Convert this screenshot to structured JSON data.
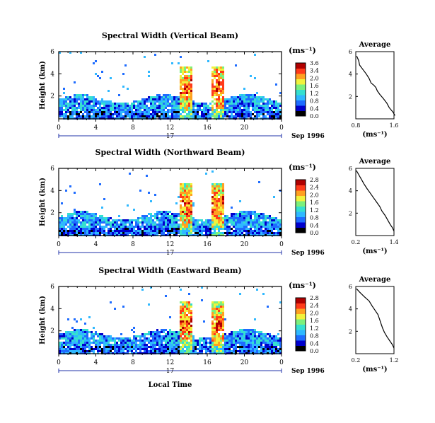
{
  "colors": {
    "axis": "#000000",
    "date_line": "#2233aa",
    "colormap": [
      "#000000",
      "#0000cc",
      "#1e6cff",
      "#2fb8ff",
      "#35e0d0",
      "#7cf07c",
      "#f2f23c",
      "#ffa020",
      "#ff3a1a",
      "#b00000"
    ]
  },
  "common": {
    "x_ticks": [
      "0",
      "4",
      "8",
      "12",
      "16",
      "20",
      "0"
    ],
    "y_ticks": [
      "6",
      "4",
      "2"
    ],
    "y_label": "Height (km)",
    "day_label": "17",
    "date_label": "Sep 1996",
    "units": "(ms⁻¹)",
    "avg_title": "Average",
    "avg_xlabel": "(ms⁻¹)",
    "x_label": "Local Time"
  },
  "chart_data": [
    {
      "type": "heatmap",
      "title": "Spectral Width (Vertical Beam)",
      "xlabel": "",
      "ylabel": "Height (km)",
      "xlim": [
        0,
        24
      ],
      "ylim": [
        0,
        6
      ],
      "colorbar_ticks": [
        "3.6",
        "3.4",
        "2.0",
        "1.6",
        "1.2",
        "0.8",
        "0.4",
        "0.0"
      ],
      "colorbar_range": [
        0,
        3.6
      ],
      "average": {
        "type": "line",
        "title": "Average",
        "xlabel": "(ms⁻¹)",
        "xticks": [
          "0.8",
          "1.6"
        ],
        "xlim": [
          0.8,
          1.6
        ],
        "ylim": [
          0,
          6
        ],
        "x": [
          0.82,
          0.86,
          0.88,
          0.95,
          1.02,
          1.08,
          1.12,
          1.18,
          1.22,
          1.25,
          1.3,
          1.38,
          1.45,
          1.5,
          1.58,
          1.62
        ],
        "y": [
          5.6,
          5.2,
          4.8,
          4.4,
          4.0,
          3.6,
          3.2,
          3.0,
          2.8,
          2.5,
          2.2,
          1.8,
          1.4,
          1.0,
          0.6,
          0.3
        ]
      }
    },
    {
      "type": "heatmap",
      "title": "Spectral Width (Northward Beam)",
      "xlabel": "",
      "ylabel": "Height (km)",
      "xlim": [
        0,
        24
      ],
      "ylim": [
        0,
        6
      ],
      "colorbar_ticks": [
        "2.8",
        "2.4",
        "2.0",
        "1.6",
        "1.2",
        "0.8",
        "0.4",
        "0.0"
      ],
      "colorbar_range": [
        0,
        2.8
      ],
      "average": {
        "type": "line",
        "title": "Average",
        "xlabel": "(ms⁻¹)",
        "xticks": [
          "0.2",
          "1.4"
        ],
        "xlim": [
          0.2,
          1.4
        ],
        "ylim": [
          0,
          6
        ],
        "x": [
          0.22,
          0.3,
          0.38,
          0.46,
          0.55,
          0.65,
          0.75,
          0.85,
          0.95,
          1.02,
          1.12,
          1.2,
          1.28,
          1.35,
          1.4
        ],
        "y": [
          5.8,
          5.4,
          5.0,
          4.6,
          4.2,
          3.8,
          3.4,
          3.0,
          2.6,
          2.2,
          1.8,
          1.4,
          1.0,
          0.7,
          0.4
        ]
      }
    },
    {
      "type": "heatmap",
      "title": "Spectral Width (Eastward Beam)",
      "xlabel": "Local Time",
      "ylabel": "Height (km)",
      "xlim": [
        0,
        24
      ],
      "ylim": [
        0,
        6
      ],
      "colorbar_ticks": [
        "2.8",
        "2.4",
        "2.0",
        "1.6",
        "1.2",
        "0.8",
        "0.4",
        "0.0"
      ],
      "colorbar_range": [
        0,
        2.8
      ],
      "average": {
        "type": "line",
        "title": "Average",
        "xlabel": "(ms⁻¹)",
        "xticks": [
          "0.2",
          "1.2"
        ],
        "xlim": [
          0.2,
          1.2
        ],
        "ylim": [
          0,
          6
        ],
        "x": [
          0.22,
          0.3,
          0.42,
          0.55,
          0.62,
          0.7,
          0.78,
          0.82,
          0.86,
          0.9,
          0.95,
          1.02,
          1.1,
          1.16,
          1.2
        ],
        "y": [
          5.8,
          5.5,
          5.1,
          4.7,
          4.3,
          3.9,
          3.5,
          3.1,
          2.7,
          2.3,
          1.9,
          1.5,
          1.1,
          0.8,
          0.5
        ]
      }
    }
  ]
}
